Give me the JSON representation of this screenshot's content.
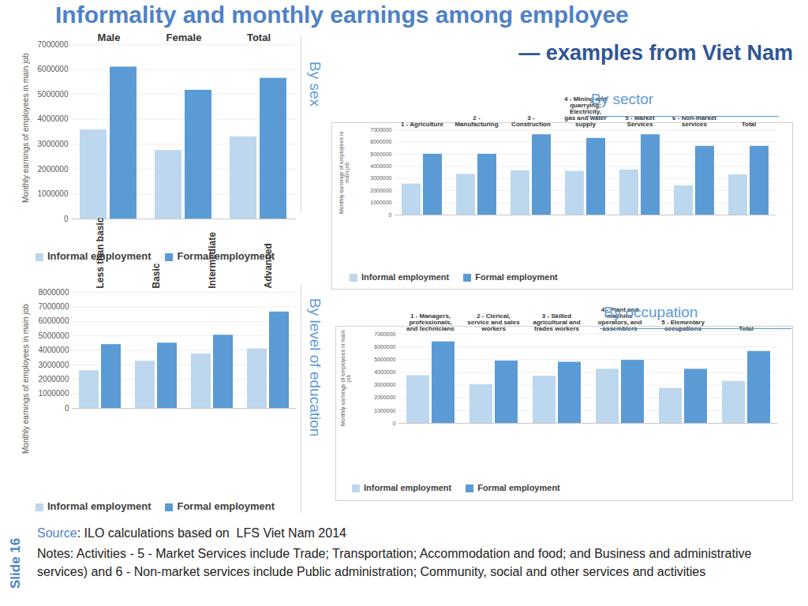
{
  "title": "Informality and monthly earnings among employee",
  "subtitle": "— examples from Viet Nam",
  "source": "Source: ILO calculations based on  LFS Viet Nam 2014",
  "notes": "Notes: Activities - 5 - Market Services include Trade; Transportation; Accommodation and food; and Business and administrative services) and 6 - Non-market services include Public administration; Community, social and other services and activities",
  "slide": "Slide 16",
  "chart_data": [
    {
      "type": "bar",
      "title": "By sex",
      "ylabel": "Monthly earnings of employees in main job",
      "categories": [
        "Male",
        "Female",
        "Total"
      ],
      "series": [
        {
          "name": "Informal employment",
          "color": "#bdd7ee",
          "values": [
            3580000,
            2750000,
            3300000
          ]
        },
        {
          "name": "Formal employment",
          "color": "#5b9bd5",
          "values": [
            6100000,
            5170000,
            5650000
          ]
        }
      ],
      "ylim": [
        0,
        7000000
      ],
      "yticks": [
        0,
        1000000,
        2000000,
        3000000,
        4000000,
        5000000,
        6000000,
        7000000
      ],
      "grid": true,
      "legend": "bottom"
    },
    {
      "type": "bar",
      "title": "By sector",
      "ylabel": "Monthly earnings of employees in main job",
      "categories": [
        "1 - Agriculture",
        "2 - Manufacturing",
        "3 - Construction",
        "4 - Mining and quarrying; Electricity, gas and water supply",
        "5 - Market Services",
        "6 - Non-market services",
        "Total"
      ],
      "series": [
        {
          "name": "Informal employment",
          "color": "#bdd7ee",
          "values": [
            2550000,
            3350000,
            3650000,
            3600000,
            3700000,
            2400000,
            3300000
          ]
        },
        {
          "name": "Formal employment",
          "color": "#5b9bd5",
          "values": [
            5000000,
            5000000,
            6600000,
            6300000,
            6600000,
            5650000,
            5650000
          ]
        }
      ],
      "ylim": [
        0,
        7000000
      ],
      "yticks": [
        0,
        1000000,
        2000000,
        3000000,
        4000000,
        5000000,
        6000000,
        7000000
      ],
      "grid": true,
      "legend": "bottom"
    },
    {
      "type": "bar",
      "title": "By level of education",
      "ylabel": "Monthly earnings of employees in main job",
      "categories": [
        "Less than basic",
        "Basic",
        "Intermediate",
        "Advanced"
      ],
      "series": [
        {
          "name": "Informal employment",
          "color": "#bdd7ee",
          "values": [
            2600000,
            3250000,
            3750000,
            4100000
          ]
        },
        {
          "name": "Formal employment",
          "color": "#5b9bd5",
          "values": [
            4400000,
            4500000,
            5050000,
            6650000
          ]
        }
      ],
      "ylim": [
        0,
        8000000
      ],
      "yticks": [
        0,
        1000000,
        2000000,
        3000000,
        4000000,
        5000000,
        6000000,
        7000000,
        8000000
      ],
      "grid": true,
      "legend": "bottom"
    },
    {
      "type": "bar",
      "title": "By occupation",
      "ylabel": "Monthly earnings of employees in main job",
      "categories": [
        "1 - Managers, professionals, and technicians",
        "2 - Clerical, service and sales workers",
        "3 - Skilled agricultural and trades workers",
        "4 - Plant and machine operators, and assemblers",
        "5 - Elementary occupations",
        "Total"
      ],
      "series": [
        {
          "name": "Informal employment",
          "color": "#bdd7ee",
          "values": [
            3750000,
            3050000,
            3700000,
            4250000,
            2750000,
            3300000
          ]
        },
        {
          "name": "Formal employment",
          "color": "#5b9bd5",
          "values": [
            6400000,
            4900000,
            4800000,
            4950000,
            4250000,
            5650000
          ]
        }
      ],
      "ylim": [
        0,
        7000000
      ],
      "yticks": [
        0,
        1000000,
        2000000,
        3000000,
        4000000,
        5000000,
        6000000,
        7000000
      ],
      "grid": true,
      "legend": "bottom"
    }
  ]
}
